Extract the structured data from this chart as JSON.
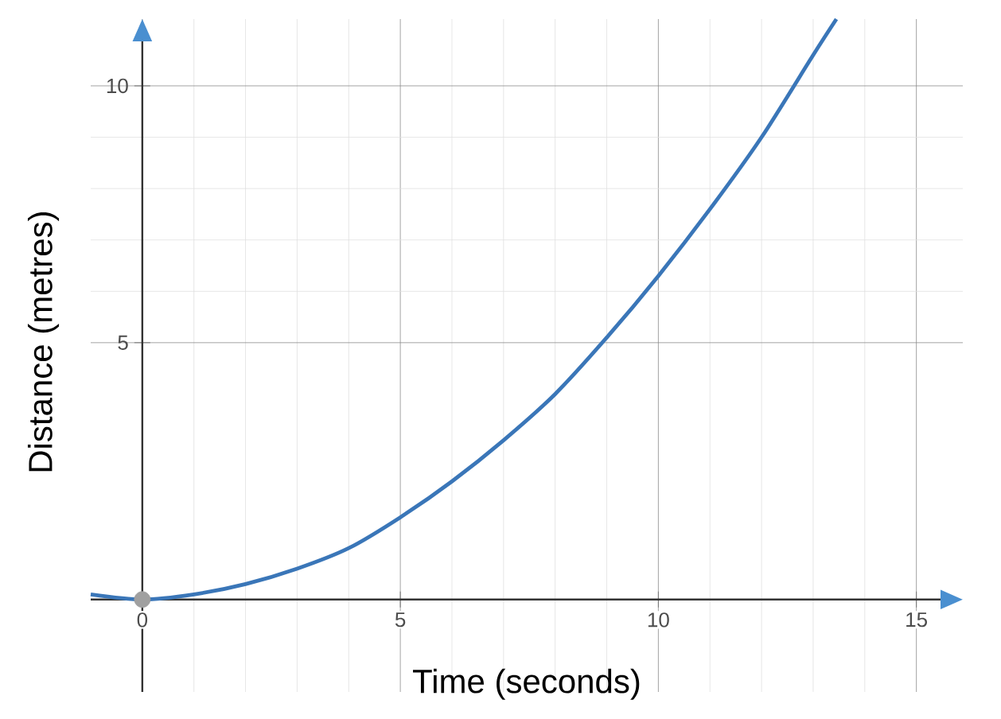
{
  "chart_data": {
    "type": "line",
    "xlabel": "Time (seconds)",
    "ylabel": "Distance (metres)",
    "xlim": [
      -1,
      15.9
    ],
    "ylim": [
      -1.8,
      11.3
    ],
    "xticks": [
      0,
      5,
      10,
      15
    ],
    "yticks": [
      5,
      10
    ],
    "grid": true,
    "series": [
      {
        "color": "#3a76b8",
        "x": [
          -1,
          0,
          1,
          2,
          3,
          4,
          5,
          6,
          7,
          8,
          9,
          10,
          11,
          12,
          13,
          13.45
        ],
        "values": [
          0.1,
          0,
          0.1,
          0.3,
          0.6,
          1,
          1.6,
          2.3,
          3.1,
          4,
          5.1,
          6.3,
          7.6,
          9,
          10.6,
          11.3
        ]
      },
      {
        "type": "scatter",
        "color": "#a0a0a0",
        "marker": "circle",
        "x": [
          0
        ],
        "values": [
          0
        ]
      }
    ]
  }
}
